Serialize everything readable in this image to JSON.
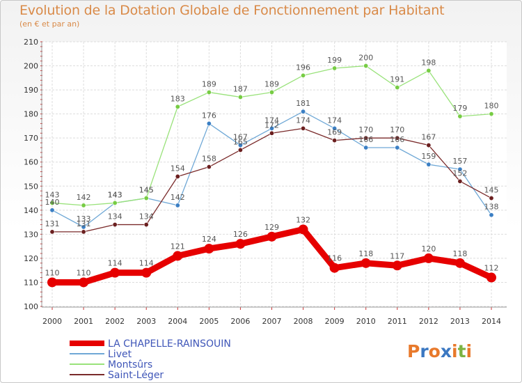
{
  "title": "Evolution de la Dotation Globale de Fonctionnement par Habitant",
  "subtitle": "(en € et par an)",
  "logo": {
    "text": "Proxiti",
    "letter_colors": [
      "#e8792b",
      "#3b78c2",
      "#e8792b",
      "#3b78c2",
      "#e8792b",
      "#7cb342",
      "#e8792b"
    ]
  },
  "chart_data": {
    "type": "line",
    "categories": [
      "2000",
      "2001",
      "2002",
      "2003",
      "2004",
      "2005",
      "2006",
      "2007",
      "2008",
      "2009",
      "2010",
      "2011",
      "2012",
      "2013",
      "2014"
    ],
    "y_ticks": [
      "100",
      "110",
      "120",
      "130",
      "140",
      "150",
      "160",
      "170",
      "180",
      "190",
      "200",
      "210"
    ],
    "ylim": [
      100,
      210
    ],
    "grid": true,
    "legend_position": "bottom-left",
    "series": [
      {
        "name": "LA CHAPELLE-RAINSOUIN",
        "color": "#e60000",
        "point_color": "#e60000",
        "label_color": "#555555",
        "thick": true,
        "values": [
          110,
          110,
          114,
          114,
          121,
          124,
          126,
          129,
          132,
          116,
          118,
          117,
          120,
          118,
          112
        ],
        "labels": [
          "110",
          "110",
          "114",
          "114",
          "121",
          "124",
          "126",
          "129",
          "132",
          "116",
          "118",
          "117",
          "120",
          "118",
          "112"
        ]
      },
      {
        "name": "Livet",
        "color": "#6fa8d6",
        "point_color": "#3b7fc4",
        "label_color": "#555555",
        "thick": false,
        "values": [
          140,
          133,
          143,
          145,
          142,
          176,
          167,
          174,
          181,
          174,
          166,
          166,
          159,
          157,
          138
        ],
        "labels": [
          "140",
          "133",
          "143",
          "145",
          "142",
          "176",
          "167",
          "174",
          "181",
          "174",
          "166",
          "166",
          "159",
          "157",
          "138"
        ]
      },
      {
        "name": "Montsûrs",
        "color": "#99e27a",
        "point_color": "#77cc44",
        "label_color": "#555555",
        "thick": false,
        "values": [
          143,
          142,
          143,
          145,
          183,
          189,
          187,
          189,
          196,
          199,
          200,
          191,
          198,
          179,
          180
        ],
        "labels": [
          "143",
          "142",
          "143",
          "145",
          "183",
          "189",
          "187",
          "189",
          "196",
          "199",
          "200",
          "191",
          "198",
          "179",
          "180"
        ]
      },
      {
        "name": "Saint-Léger",
        "color": "#7a2a2a",
        "point_color": "#6b1f1f",
        "label_color": "#555555",
        "thick": false,
        "values": [
          131,
          131,
          134,
          134,
          154,
          158,
          165,
          172,
          174,
          169,
          170,
          170,
          167,
          152,
          145
        ],
        "labels": [
          "131",
          "131",
          "134",
          "134",
          "154",
          "158",
          "165",
          "172",
          "174",
          "169",
          "170",
          "170",
          "167",
          "152",
          "145"
        ]
      }
    ]
  }
}
